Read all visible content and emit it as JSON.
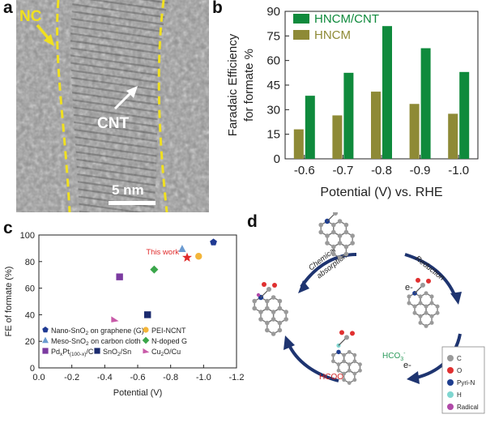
{
  "panel_labels": {
    "a": "a",
    "b": "b",
    "c": "c",
    "d": "d"
  },
  "panel_a": {
    "label_nc": "NC",
    "label_cnt": "CNT",
    "scale_bar": "5 nm"
  },
  "panel_b": {
    "chart_data": {
      "type": "bar",
      "categories": [
        "-0.6",
        "-0.7",
        "-0.8",
        "-0.9",
        "-1.0"
      ],
      "series": [
        {
          "name": "HNCM/CNT",
          "values": [
            38.5,
            52.5,
            81,
            67.5,
            53
          ],
          "color": "#0f8a3c"
        },
        {
          "name": "HNCM",
          "values": [
            18,
            26.5,
            41,
            33.5,
            27.5
          ],
          "color": "#8e8a36"
        }
      ],
      "xlabel": "Potential (V) vs. RHE",
      "ylabel_line1": "Faradaic Efficiency",
      "ylabel_line2": "for formate %",
      "ylim": [
        0,
        90
      ],
      "yticks": [
        "0",
        "15",
        "30",
        "45",
        "60",
        "75",
        "90"
      ],
      "legend_position": "top-left"
    }
  },
  "panel_c": {
    "chart_data": {
      "type": "scatter",
      "xlabel": "Potential (V)",
      "ylabel": "FE of formate (%)",
      "xlim": [
        0.0,
        -1.2
      ],
      "ylim": [
        0,
        100
      ],
      "xticks": [
        "0.0",
        "-0.2",
        "-0.4",
        "-0.6",
        "-0.8",
        "-1.0",
        "-1.2"
      ],
      "yticks": [
        "0",
        "20",
        "40",
        "60",
        "80",
        "100"
      ],
      "series": [
        {
          "name": "Nano-SnO2 on graphene (G)",
          "shape": "pentagon",
          "color": "#1f3a93",
          "points": [
            [
              -1.06,
              94.5
            ]
          ]
        },
        {
          "name": "Meso-SnO2 on carbon cloth",
          "shape": "triangle",
          "color": "#6b9bd1",
          "points": [
            [
              -0.87,
              89.5
            ]
          ]
        },
        {
          "name": "PdxPt(100-x)/C",
          "shape": "square",
          "color": "#7b3aa0",
          "points": [
            [
              -0.49,
              68.5
            ]
          ]
        },
        {
          "name": "PEI-NCNT",
          "shape": "circle",
          "color": "#f3b53a",
          "points": [
            [
              -0.97,
              84
            ]
          ]
        },
        {
          "name": "N-doped G",
          "shape": "diamond",
          "color": "#3aa64a",
          "points": [
            [
              -0.7,
              74
            ]
          ]
        },
        {
          "name": "SnO2/Sn",
          "shape": "square",
          "color": "#1a2a6e",
          "points": [
            [
              -0.66,
              40
            ]
          ]
        },
        {
          "name": "Cu2O/Cu",
          "shape": "triangle-right",
          "color": "#c85aa8",
          "points": [
            [
              -0.46,
              36.5
            ]
          ]
        },
        {
          "name": "This work",
          "shape": "star",
          "color": "#e02a2a",
          "points": [
            [
              -0.9,
              83
            ]
          ]
        }
      ],
      "annotation": "This work",
      "legend": {
        "items": [
          {
            "shape": "pentagon",
            "color": "#1f3a93",
            "main": "Nano-SnO",
            "sub": "2",
            "rest": " on graphene (G)"
          },
          {
            "shape": "circle",
            "color": "#f3b53a",
            "main": "PEI-NCNT",
            "sub": "",
            "rest": ""
          },
          {
            "shape": "triangle",
            "color": "#6b9bd1",
            "main": "Meso-SnO",
            "sub": "2",
            "rest": " on carbon cloth"
          },
          {
            "shape": "diamond",
            "color": "#3aa64a",
            "main": "N-doped G",
            "sub": "",
            "rest": ""
          },
          {
            "shape": "square",
            "color": "#7b3aa0",
            "main": "Pd",
            "sub": "x",
            "rest": "Pt",
            "sub2": "(100-x)",
            "rest2": "/C"
          },
          {
            "shape": "square",
            "color": "#1a2a6e",
            "main": "SnO",
            "sub": "2",
            "rest": "/Sn"
          },
          {
            "shape": "triangle-right",
            "color": "#c85aa8",
            "main": "Cu",
            "sub": "2",
            "rest": "O/Cu"
          }
        ]
      }
    }
  },
  "panel_d": {
    "step_chemical_1": "Chemical",
    "step_chemical_2": "absorption",
    "step_reduction": "Reduction",
    "electron": "e-",
    "hco3_main": "HCO",
    "hco3_sub": "3",
    "hco3_sup": "-",
    "hcoo": "HCOO",
    "hcoo_sup": "-",
    "legend": [
      {
        "label": "C",
        "color": "#9a9a9a"
      },
      {
        "label": "O",
        "color": "#e03030"
      },
      {
        "label": "Pyri-N",
        "color": "#1e3d8f"
      },
      {
        "label": "H",
        "color": "#7fd6d0"
      },
      {
        "label": "Radical",
        "color": "#b04aa8"
      }
    ]
  }
}
